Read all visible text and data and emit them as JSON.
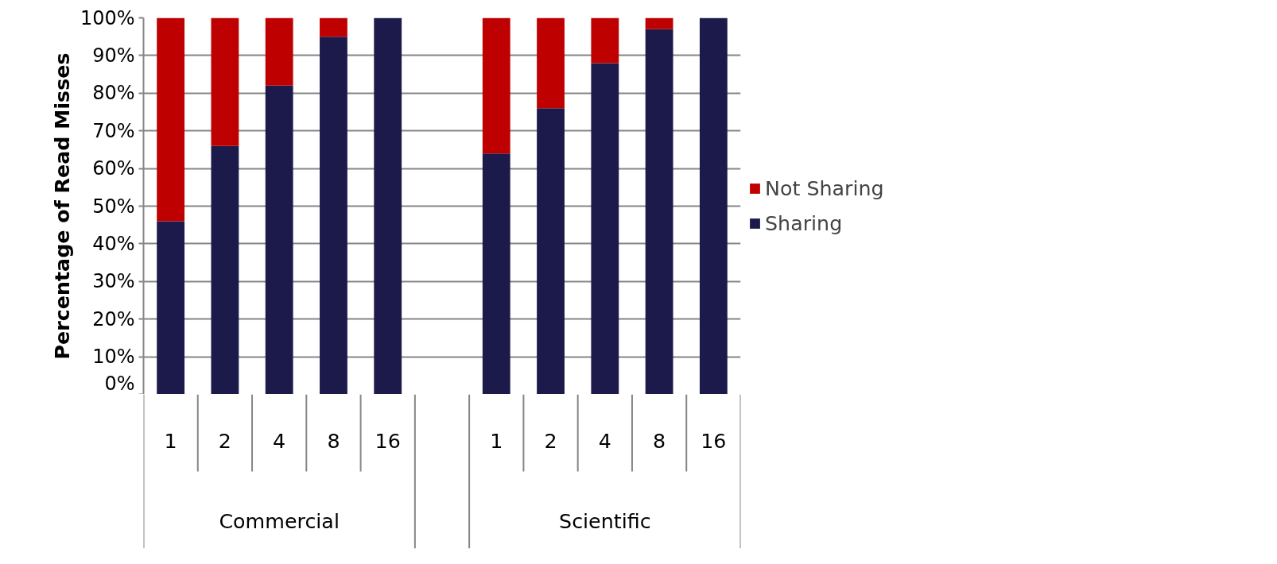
{
  "chart_data": {
    "type": "bar",
    "ylabel": "Percentage of Read Misses",
    "categories": [
      "1",
      "2",
      "4",
      "8",
      "16",
      null,
      "1",
      "2",
      "4",
      "8",
      "16"
    ],
    "series": [
      {
        "name": "Sharing",
        "color": "#1b1a4b",
        "values": [
          46,
          66,
          82,
          95,
          100,
          null,
          64,
          76,
          88,
          97,
          100
        ]
      },
      {
        "name": "Not Sharing",
        "color": "#bf0000",
        "values": [
          54,
          34,
          18,
          5,
          0,
          null,
          36,
          24,
          12,
          3,
          0
        ]
      }
    ],
    "stacked": true,
    "ylim": [
      0,
      100
    ],
    "yticks": [
      {
        "value": 0,
        "label": "0%"
      },
      {
        "value": 10,
        "label": "10%"
      },
      {
        "value": 20,
        "label": "20%"
      },
      {
        "value": 30,
        "label": "30%"
      },
      {
        "value": 40,
        "label": "40%"
      },
      {
        "value": 50,
        "label": "50%"
      },
      {
        "value": 60,
        "label": "60%"
      },
      {
        "value": 70,
        "label": "70%"
      },
      {
        "value": 80,
        "label": "80%"
      },
      {
        "value": 90,
        "label": "90%"
      },
      {
        "value": 100,
        "label": "100%"
      }
    ],
    "grid": "y",
    "legend": "right",
    "annotations": [
      "Commercial",
      "Scientific"
    ]
  }
}
